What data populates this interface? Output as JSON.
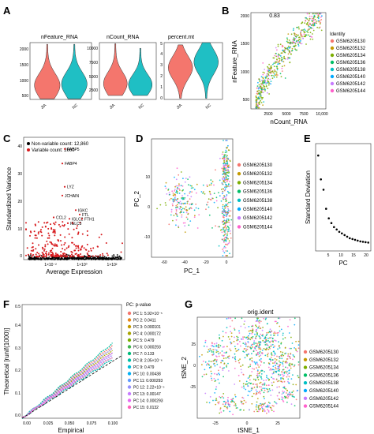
{
  "figure": {
    "panels": {
      "A": "A",
      "B": "B",
      "C": "C",
      "D": "D",
      "E": "E",
      "F": "F",
      "G": "G"
    }
  },
  "chart_data": [
    {
      "panel": "A",
      "type": "violin",
      "title": "nFeature_RNA",
      "categories": [
        "JIA",
        "NC"
      ],
      "ylim": [
        400,
        2100
      ],
      "yticks": [
        "500",
        "1000",
        "1500",
        "2000"
      ],
      "series": [
        {
          "category": "JIA",
          "median": 820,
          "min": 420,
          "max": 2050,
          "color": "#f4766d"
        },
        {
          "category": "NC",
          "median": 860,
          "min": 420,
          "max": 2050,
          "color": "#1fbfc4"
        }
      ]
    },
    {
      "panel": "A",
      "type": "violin",
      "title": "nCount_RNA",
      "categories": [
        "JIA",
        "NC"
      ],
      "ylim": [
        0,
        10000
      ],
      "yticks": [
        "2500",
        "5000",
        "7500",
        "10000"
      ],
      "series": [
        {
          "category": "JIA",
          "median": 2800,
          "min": 700,
          "max": 9800,
          "color": "#f4766d"
        },
        {
          "category": "NC",
          "median": 2600,
          "min": 700,
          "max": 9000,
          "color": "#1fbfc4"
        }
      ]
    },
    {
      "panel": "A",
      "type": "violin",
      "title": "percent.mt",
      "categories": [
        "JIA",
        "NC"
      ],
      "ylim": [
        0,
        5
      ],
      "yticks": [
        "0",
        "1",
        "2",
        "3",
        "4",
        "5"
      ],
      "series": [
        {
          "category": "JIA",
          "median": 2.8,
          "min": 0.1,
          "max": 4.8,
          "color": "#f4766d"
        },
        {
          "category": "NC",
          "median": 3.3,
          "min": 0.1,
          "max": 5.0,
          "color": "#1fbfc4"
        }
      ]
    },
    {
      "panel": "B",
      "type": "scatter",
      "title": "0.83",
      "xlabel": "nCount_RNA",
      "ylabel": "nFeature_RNA",
      "xlim": [
        0,
        10500
      ],
      "ylim": [
        400,
        2100
      ],
      "xticks": [
        "2500",
        "5000",
        "7500",
        "10,000"
      ],
      "yticks": [
        "500",
        "1000",
        "1500",
        "2000"
      ],
      "legend_title": "Identity",
      "legend_position": "right",
      "categories": [
        "GSM6205130",
        "GSM6205132",
        "GSM6205134",
        "GSM6205136",
        "GSM6205138",
        "GSM6205140",
        "GSM6205142",
        "GSM6205144"
      ],
      "colors": [
        "#f4766d",
        "#c49a00",
        "#7cae00",
        "#00be67",
        "#00bfc4",
        "#00a9ff",
        "#c77cff",
        "#ff61cc"
      ]
    },
    {
      "panel": "C",
      "type": "scatter",
      "xlabel": "Average Expression",
      "ylabel": "Standardized Variance",
      "xticks": [
        "1×10⁻²",
        "1×10⁰",
        "1×10²"
      ],
      "yticks": [
        "0",
        "10",
        "20",
        "30",
        "40"
      ],
      "ylim": [
        0,
        42
      ],
      "legend": [
        "Non-variable count: 12,860",
        "Variable count: 2000"
      ],
      "legend_position": "top-left",
      "colors": [
        "#000000",
        "#d7191c"
      ],
      "labeled_genes": [
        {
          "name": "FABP5",
          "y": 38
        },
        {
          "name": "FABP4",
          "y": 33
        },
        {
          "name": "LYZ",
          "y": 25
        },
        {
          "name": "JCHAIN",
          "y": 22
        },
        {
          "name": "IGKC",
          "y": 17
        },
        {
          "name": "FTL",
          "y": 15.5
        },
        {
          "name": "CCL2",
          "y": 14.5
        },
        {
          "name": "IGLC2",
          "y": 14
        },
        {
          "name": "FTH1",
          "y": 14
        },
        {
          "name": "IGLC3",
          "y": 12.5
        }
      ]
    },
    {
      "panel": "D",
      "type": "scatter",
      "xlabel": "PC_1",
      "ylabel": "PC_2",
      "xticks": [
        "-60",
        "-40",
        "-20",
        "0"
      ],
      "yticks": [
        "-10",
        "0",
        "10"
      ],
      "xlim": [
        -65,
        5
      ],
      "ylim": [
        -18,
        20
      ],
      "categories": [
        "GSM6205130",
        "GSM6205132",
        "GSM6205134",
        "GSM6205136",
        "GSM6205138",
        "GSM6205140",
        "GSM6205142",
        "GSM6205144"
      ],
      "colors": [
        "#f4766d",
        "#c49a00",
        "#7cae00",
        "#00be67",
        "#00bfc4",
        "#00a9ff",
        "#c77cff",
        "#ff61cc"
      ],
      "legend_position": "right"
    },
    {
      "panel": "E",
      "type": "scatter",
      "xlabel": "PC",
      "ylabel": "Standard Deviation",
      "xticks": [
        "5",
        "10",
        "15",
        "20"
      ],
      "x": [
        1,
        2,
        3,
        4,
        5,
        6,
        7,
        8,
        9,
        10,
        11,
        12,
        13,
        14,
        15,
        16,
        17,
        18,
        19,
        20
      ],
      "y": [
        13.5,
        10.5,
        9.2,
        6.8,
        5.6,
        5.0,
        4.5,
        4.2,
        3.9,
        3.7,
        3.5,
        3.3,
        3.1,
        3.0,
        2.9,
        2.8,
        2.7,
        2.65,
        2.6,
        2.55
      ],
      "ylim": [
        1.5,
        15
      ],
      "xlim": [
        0,
        21
      ]
    },
    {
      "panel": "F",
      "type": "line",
      "xlabel": "Empirical",
      "ylabel": "Theoretical [runif(1000)]",
      "xticks": [
        "0.00",
        "0.025",
        "0.050",
        "0.075",
        "0.100"
      ],
      "yticks": [
        "0.0",
        "0.1",
        "0.2",
        "0.3",
        "0.4",
        "0.5"
      ],
      "xlim": [
        0,
        0.11
      ],
      "ylim": [
        0,
        0.5
      ],
      "legend_title": "PC: p-value",
      "legend_position": "right",
      "series": [
        {
          "name": "PC 1: 5.92×10⁻⁵",
          "color": "#f4766d",
          "slope": 3.2
        },
        {
          "name": "PC 2: 0.0411",
          "color": "#e7861a",
          "slope": 2.9
        },
        {
          "name": "PC 3: 0.000101",
          "color": "#c49a00",
          "slope": 3.1
        },
        {
          "name": "PC 4: 0.000172",
          "color": "#a9a400",
          "slope": 3.0
        },
        {
          "name": "PC 5: 0.479",
          "color": "#7cae00",
          "slope": 2.6
        },
        {
          "name": "PC 6: 0.000293",
          "color": "#3fb54e",
          "slope": 2.9
        },
        {
          "name": "PC 7: 0.133",
          "color": "#00bb7a",
          "slope": 2.7
        },
        {
          "name": "PC 8: 2.05×10⁻⁶",
          "color": "#00bfa5",
          "slope": 3.3
        },
        {
          "name": "PC 9: 0.479",
          "color": "#00bcd8",
          "slope": 2.6
        },
        {
          "name": "PC 10: 0.00438",
          "color": "#00b0f6",
          "slope": 2.8
        },
        {
          "name": "PC 11: 0.000293",
          "color": "#619cff",
          "slope": 2.9
        },
        {
          "name": "PC 12: 2.22×10⁻⁵",
          "color": "#9590ff",
          "slope": 3.1
        },
        {
          "name": "PC 13: 0.00147",
          "color": "#c77cff",
          "slope": 2.8
        },
        {
          "name": "PC 14: 0.000293",
          "color": "#e76bf3",
          "slope": 2.9
        },
        {
          "name": "PC 15: 0.0132",
          "color": "#ff62bc",
          "slope": 2.7
        }
      ]
    },
    {
      "panel": "G",
      "type": "scatter",
      "title": "orig.ident",
      "xlabel": "tSNE_1",
      "ylabel": "tSNE_2",
      "xticks": [
        "-25",
        "0",
        "25"
      ],
      "yticks": [
        "-25",
        "0",
        "25"
      ],
      "xlim": [
        -45,
        40
      ],
      "ylim": [
        -45,
        45
      ],
      "categories": [
        "GSM6205130",
        "GSM6205132",
        "GSM6205134",
        "GSM6205136",
        "GSM6205138",
        "GSM6205140",
        "GSM6205142",
        "GSM6205144"
      ],
      "colors": [
        "#f4766d",
        "#c49a00",
        "#7cae00",
        "#00be67",
        "#00bfc4",
        "#00a9ff",
        "#c77cff",
        "#ff61cc"
      ],
      "legend_position": "right"
    }
  ]
}
